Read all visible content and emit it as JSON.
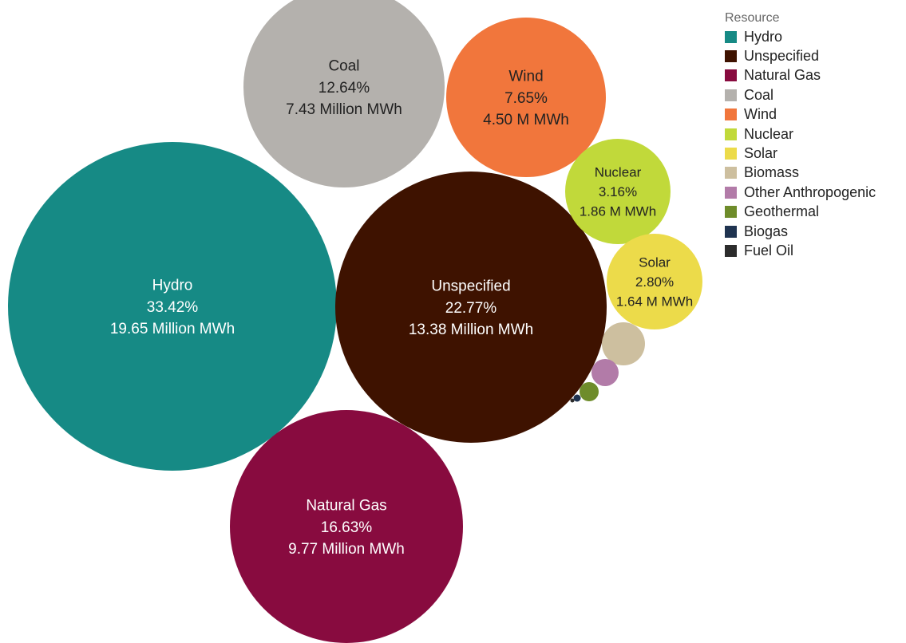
{
  "chart_data": {
    "type": "bubble",
    "legend_title": "Resource",
    "legend_position": "top-right",
    "series": [
      {
        "name": "Hydro",
        "percent": 33.42,
        "value_text": "19.65 Million MWh",
        "percent_text": "33.42%",
        "value_mwh_millions": 19.65,
        "color": "#168a85",
        "label_color": "#ffffff"
      },
      {
        "name": "Unspecified",
        "percent": 22.77,
        "value_text": "13.38 Million MWh",
        "percent_text": "22.77%",
        "value_mwh_millions": 13.38,
        "color": "#3e1200",
        "label_color": "#ffffff"
      },
      {
        "name": "Natural Gas",
        "percent": 16.63,
        "value_text": "9.77 Million MWh",
        "percent_text": "16.63%",
        "value_mwh_millions": 9.77,
        "color": "#880b3f",
        "label_color": "#ffffff"
      },
      {
        "name": "Coal",
        "percent": 12.64,
        "value_text": "7.43 Million MWh",
        "percent_text": "12.64%",
        "value_mwh_millions": 7.43,
        "color": "#b4b1ad",
        "label_color": "#222222"
      },
      {
        "name": "Wind",
        "percent": 7.65,
        "value_text": "4.50 M MWh",
        "percent_text": "7.65%",
        "value_mwh_millions": 4.5,
        "color": "#f1763c",
        "label_color": "#222222"
      },
      {
        "name": "Nuclear",
        "percent": 3.16,
        "value_text": "1.86 M MWh",
        "percent_text": "3.16%",
        "value_mwh_millions": 1.86,
        "color": "#c1d93a",
        "label_color": "#222222"
      },
      {
        "name": "Solar",
        "percent": 2.8,
        "value_text": "1.64 M MWh",
        "percent_text": "2.80%",
        "value_mwh_millions": 1.64,
        "color": "#ecdb4a",
        "label_color": "#222222"
      },
      {
        "name": "Biomass",
        "color": "#cdbf9f"
      },
      {
        "name": "Other Anthropogenic",
        "color": "#b27ba8"
      },
      {
        "name": "Geothermal",
        "color": "#6e8c2a"
      },
      {
        "name": "Biogas",
        "color": "#1f3350"
      },
      {
        "name": "Fuel Oil",
        "color": "#2c2c2c"
      }
    ]
  }
}
